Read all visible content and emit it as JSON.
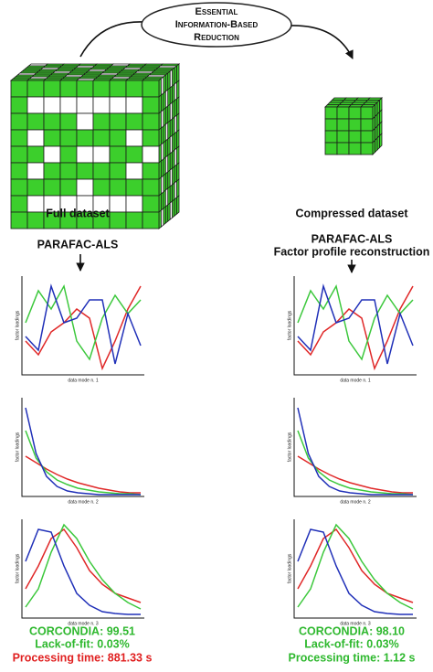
{
  "header": {
    "title_lines": [
      "Essential",
      "Information-Based",
      "Reduction"
    ]
  },
  "left": {
    "label": "Full dataset",
    "method_lines": [
      "PARAFAC-ALS"
    ],
    "stats": [
      "CORCONDIA: 99.51",
      "Lack-of-fit: 0.03%",
      "Processing time: 881.33 s"
    ]
  },
  "right": {
    "label": "Compressed dataset",
    "method_lines": [
      "PARAFAC-ALS",
      "Factor profile reconstruction"
    ],
    "stats": [
      "CORCONDIA: 98.10",
      "Lack-of-fit: 0.03%",
      "Processing time: 1.12 s"
    ]
  },
  "panels": [
    {
      "x_label": "data mode n. 1",
      "y_label": "factor loadings",
      "series": [
        {
          "color": "#e02828",
          "values": [
            0.35,
            0.2,
            0.45,
            0.55,
            0.7,
            0.6,
            0.05,
            0.35,
            0.7,
            0.95
          ]
        },
        {
          "color": "#3cc83c",
          "values": [
            0.55,
            0.9,
            0.7,
            0.95,
            0.35,
            0.15,
            0.6,
            0.85,
            0.65,
            0.8
          ]
        },
        {
          "color": "#2030b8",
          "values": [
            0.4,
            0.25,
            0.95,
            0.55,
            0.6,
            0.8,
            0.8,
            0.1,
            0.65,
            0.3
          ]
        }
      ]
    },
    {
      "x_label": "data mode n. 2",
      "y_label": "factor loadings",
      "series": [
        {
          "color": "#e02828",
          "values": [
            0.42,
            0.35,
            0.28,
            0.22,
            0.17,
            0.13,
            0.1,
            0.07,
            0.05,
            0.03,
            0.02,
            0.02
          ]
        },
        {
          "color": "#3cc83c",
          "values": [
            0.7,
            0.4,
            0.25,
            0.16,
            0.11,
            0.07,
            0.05,
            0.03,
            0.02,
            0.01,
            0.01,
            0.0
          ]
        },
        {
          "color": "#2030b8",
          "values": [
            0.95,
            0.45,
            0.2,
            0.09,
            0.04,
            0.02,
            0.01,
            0.0,
            0.0,
            0.0,
            0.0,
            0.0
          ]
        }
      ]
    },
    {
      "x_label": "data mode n. 3",
      "y_label": "factor loadings",
      "series": [
        {
          "color": "#e02828",
          "values": [
            0.3,
            0.55,
            0.85,
            0.95,
            0.75,
            0.5,
            0.35,
            0.25,
            0.2,
            0.15
          ]
        },
        {
          "color": "#3cc83c",
          "values": [
            0.1,
            0.3,
            0.7,
            1.0,
            0.85,
            0.6,
            0.4,
            0.25,
            0.15,
            0.08
          ]
        },
        {
          "color": "#2030b8",
          "values": [
            0.6,
            0.95,
            0.92,
            0.55,
            0.25,
            0.12,
            0.05,
            0.03,
            0.02,
            0.02
          ]
        }
      ]
    },
    {
      "x_label": "data mode n. 1",
      "y_label": "factor loadings",
      "series": [
        {
          "color": "#e02828",
          "values": [
            0.35,
            0.2,
            0.45,
            0.55,
            0.7,
            0.6,
            0.05,
            0.35,
            0.7,
            0.95
          ]
        },
        {
          "color": "#3cc83c",
          "values": [
            0.55,
            0.9,
            0.7,
            0.95,
            0.35,
            0.15,
            0.6,
            0.85,
            0.65,
            0.8
          ]
        },
        {
          "color": "#2030b8",
          "values": [
            0.4,
            0.25,
            0.95,
            0.55,
            0.6,
            0.8,
            0.8,
            0.1,
            0.65,
            0.3
          ]
        }
      ]
    },
    {
      "x_label": "data mode n. 2",
      "y_label": "factor loadings",
      "series": [
        {
          "color": "#e02828",
          "values": [
            0.42,
            0.35,
            0.28,
            0.22,
            0.17,
            0.13,
            0.1,
            0.07,
            0.05,
            0.03,
            0.02,
            0.02
          ]
        },
        {
          "color": "#3cc83c",
          "values": [
            0.7,
            0.4,
            0.25,
            0.16,
            0.11,
            0.07,
            0.05,
            0.03,
            0.02,
            0.01,
            0.01,
            0.0
          ]
        },
        {
          "color": "#2030b8",
          "values": [
            0.95,
            0.45,
            0.2,
            0.09,
            0.04,
            0.02,
            0.01,
            0.0,
            0.0,
            0.0,
            0.0,
            0.0
          ]
        }
      ]
    },
    {
      "x_label": "data mode n. 3",
      "y_label": "factor loadings",
      "series": [
        {
          "color": "#e02828",
          "values": [
            0.3,
            0.55,
            0.85,
            0.95,
            0.75,
            0.5,
            0.35,
            0.25,
            0.2,
            0.15
          ]
        },
        {
          "color": "#3cc83c",
          "values": [
            0.1,
            0.3,
            0.7,
            1.0,
            0.85,
            0.6,
            0.4,
            0.25,
            0.15,
            0.08
          ]
        },
        {
          "color": "#2030b8",
          "values": [
            0.6,
            0.95,
            0.92,
            0.55,
            0.25,
            0.12,
            0.05,
            0.03,
            0.02,
            0.02
          ]
        }
      ]
    }
  ]
}
